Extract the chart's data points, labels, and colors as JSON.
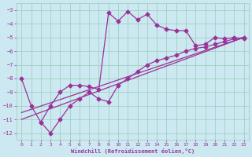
{
  "xlabel": "Windchill (Refroidissement éolien,°C)",
  "bg_color": "#cce8f0",
  "grid_color": "#99ccbb",
  "line_color": "#993399",
  "line1_x": [
    0,
    1,
    2,
    3,
    4,
    5,
    6,
    7,
    8,
    9,
    10,
    11,
    12,
    13,
    14,
    15,
    16,
    17,
    18,
    19,
    20,
    21,
    22,
    23
  ],
  "line1_y": [
    -8.0,
    -10.0,
    -11.2,
    -10.0,
    -9.0,
    -8.5,
    -8.5,
    -8.6,
    -8.8,
    -3.2,
    -3.8,
    -3.1,
    -3.7,
    -3.3,
    -4.1,
    -4.4,
    -4.5,
    -4.5,
    -5.6,
    -5.5,
    -5.0,
    -5.1,
    -5.0,
    -5.1
  ],
  "line2_x": [
    2,
    3,
    4,
    5,
    6,
    7,
    8,
    9,
    10,
    11,
    12,
    13,
    14,
    15,
    16,
    17,
    18,
    19,
    20,
    21,
    22,
    23
  ],
  "line2_y": [
    -11.2,
    -12.0,
    -11.0,
    -10.0,
    -9.5,
    -9.0,
    -9.5,
    -9.7,
    -8.5,
    -8.0,
    -7.5,
    -7.0,
    -6.7,
    -6.5,
    -6.3,
    -6.0,
    -5.8,
    -5.7,
    -5.5,
    -5.3,
    -5.1,
    -5.0
  ],
  "line3_x": [
    0,
    23
  ],
  "line3_y": [
    -11.0,
    -5.0
  ],
  "line4_x": [
    0,
    23
  ],
  "line4_y": [
    -10.5,
    -5.0
  ],
  "ylim": [
    -12.5,
    -2.5
  ],
  "xlim": [
    -0.5,
    23.5
  ],
  "yticks": [
    -3,
    -4,
    -5,
    -6,
    -7,
    -8,
    -9,
    -10,
    -11,
    -12
  ],
  "xticks": [
    0,
    1,
    2,
    3,
    4,
    5,
    6,
    7,
    8,
    9,
    10,
    11,
    12,
    13,
    14,
    15,
    16,
    17,
    18,
    19,
    20,
    21,
    22,
    23
  ],
  "markersize": 2.5,
  "linewidth": 0.9
}
